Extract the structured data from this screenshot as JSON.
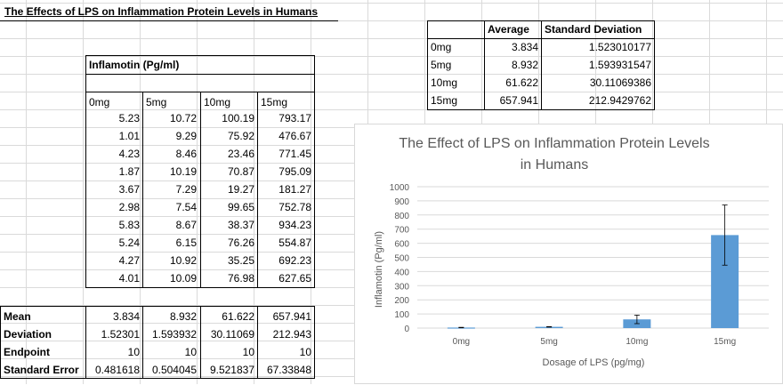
{
  "title": "The Effects of LPS on Inflammation Protein Levels in Humans",
  "data_table": {
    "label": "Inflamotin (Pg/ml)",
    "headers": [
      "0mg",
      "5mg",
      "10mg",
      "15mg"
    ],
    "rows": [
      [
        "5.23",
        "10.72",
        "100.19",
        "793.17"
      ],
      [
        "1.01",
        "9.29",
        "75.92",
        "476.67"
      ],
      [
        "4.23",
        "8.46",
        "23.46",
        "771.45"
      ],
      [
        "1.87",
        "10.19",
        "70.87",
        "795.09"
      ],
      [
        "3.67",
        "7.29",
        "19.27",
        "181.27"
      ],
      [
        "2.98",
        "7.54",
        "99.65",
        "752.78"
      ],
      [
        "5.83",
        "8.67",
        "38.37",
        "934.23"
      ],
      [
        "5.24",
        "6.15",
        "76.26",
        "554.87"
      ],
      [
        "4.27",
        "10.92",
        "35.25",
        "692.23"
      ],
      [
        "4.01",
        "10.09",
        "76.98",
        "627.65"
      ]
    ]
  },
  "stats_table": {
    "rows": [
      {
        "label": "Mean",
        "values": [
          "3.834",
          "8.932",
          "61.622",
          "657.941"
        ]
      },
      {
        "label": "Deviation",
        "values": [
          "1.52301",
          "1.593932",
          "30.11069",
          "212.943"
        ]
      },
      {
        "label": "Endpoint",
        "values": [
          "10",
          "10",
          "10",
          "10"
        ]
      },
      {
        "label": "Standard Error",
        "values": [
          "0.481618",
          "0.504045",
          "9.521837",
          "67.33848"
        ]
      }
    ]
  },
  "summary_table": {
    "headers": [
      "Average",
      "Standard Deviation"
    ],
    "rows": [
      {
        "label": "0mg",
        "average": "3.834",
        "sd": "1.523010177"
      },
      {
        "label": "5mg",
        "average": "8.932",
        "sd": "1.593931547"
      },
      {
        "label": "10mg",
        "average": "61.622",
        "sd": "30.11069386"
      },
      {
        "label": "15mg",
        "average": "657.941",
        "sd": "212.9429762"
      }
    ]
  },
  "chart_data": {
    "type": "bar",
    "title": "The Effect of LPS on Inflammation Protein Levels in Humans",
    "title_lines": [
      "The Effect of LPS on Inflammation Protein Levels",
      "in Humans"
    ],
    "xlabel": "Dosage of LPS (pg/mg)",
    "ylabel": "Inflamotin (Pg/ml)",
    "categories": [
      "0mg",
      "5mg",
      "10mg",
      "15mg"
    ],
    "values": [
      3.834,
      8.932,
      61.622,
      657.941
    ],
    "error_bars": [
      1.523010177,
      1.593931547,
      30.11069386,
      212.9429762
    ],
    "ylim": [
      0,
      1000
    ],
    "yticks": [
      "0",
      "100",
      "200",
      "300",
      "400",
      "500",
      "600",
      "700",
      "800",
      "900",
      "1000"
    ],
    "grid": true,
    "legend": "none",
    "bar_color": "#5b9bd5",
    "grid_color": "#d9d9d9"
  }
}
